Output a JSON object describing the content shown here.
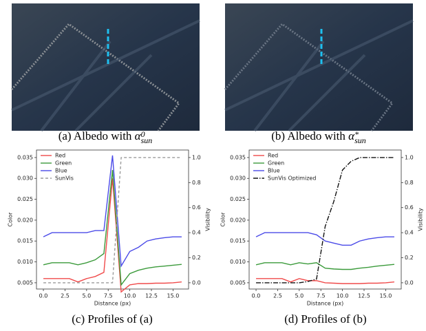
{
  "captions": [
    {
      "prefix": "(a) Albedo with ",
      "symbol": "α",
      "sup": "0",
      "sub": "sun"
    },
    {
      "prefix": "(b) Albedo with ",
      "symbol": "α",
      "sup": "*",
      "sub": "sun"
    },
    {
      "prefix": "(c) Profiles of (a)"
    },
    {
      "prefix": "(d) Profiles of (b)"
    }
  ],
  "chart_data": [
    {
      "type": "line",
      "x_label": "Distance (px)",
      "y_label": "Color",
      "y2_label": "Visibility",
      "legend": "upper-left",
      "x": [
        0,
        1,
        2,
        3,
        4,
        5,
        6,
        7,
        8,
        9,
        10,
        11,
        12,
        13,
        14,
        15,
        16
      ],
      "xlim": [
        -0.8,
        16.8
      ],
      "xticks": [
        {
          "value": 0,
          "label": "0.0"
        },
        2.5,
        {
          "value": 5,
          "label": "5.0"
        },
        7.5,
        {
          "value": 10,
          "label": "10.0"
        },
        12.5,
        {
          "value": 15,
          "label": "15.0"
        }
      ],
      "ylim": [
        0.0035,
        0.0368
      ],
      "yticks": [
        0.005,
        {
          "value": 0.01,
          "label": "0.010"
        },
        0.015,
        {
          "value": 0.02,
          "label": "0.020"
        },
        0.025,
        {
          "value": 0.03,
          "label": "0.030"
        },
        0.035
      ],
      "y2lim": [
        -0.05,
        1.06
      ],
      "y2ticks": [
        {
          "value": 0,
          "label": "0.0"
        },
        0.2,
        0.4,
        0.6,
        0.8,
        {
          "value": 1,
          "label": "1.0"
        }
      ],
      "series": [
        {
          "name": "Red",
          "color": "#f04a4a",
          "style": "solid",
          "values": [
            0.006,
            0.006,
            0.006,
            0.006,
            0.0052,
            0.006,
            0.0065,
            0.0075,
            0.03,
            0.0028,
            0.0045,
            0.0048,
            0.0048,
            0.0049,
            0.0049,
            0.005,
            0.0052
          ]
        },
        {
          "name": "Green",
          "color": "#3a9a3a",
          "style": "solid",
          "values": [
            0.0093,
            0.0098,
            0.0098,
            0.0098,
            0.0093,
            0.0098,
            0.0105,
            0.012,
            0.032,
            0.0045,
            0.0072,
            0.008,
            0.0085,
            0.0088,
            0.009,
            0.0092,
            0.0094
          ]
        },
        {
          "name": "Blue",
          "color": "#4a4ae8",
          "style": "solid",
          "values": [
            0.016,
            0.017,
            0.017,
            0.017,
            0.017,
            0.017,
            0.0175,
            0.0175,
            0.0355,
            0.009,
            0.0125,
            0.0135,
            0.015,
            0.0155,
            0.0158,
            0.016,
            0.016
          ]
        },
        {
          "name": "SunVis",
          "color": "#9a9a9a",
          "style": "dashed",
          "axis": "y2",
          "values": [
            0,
            0,
            0,
            0,
            0,
            0,
            0,
            0,
            0,
            1,
            1,
            1,
            1,
            1,
            1,
            1,
            1
          ]
        }
      ]
    },
    {
      "type": "line",
      "x_label": "Distance (px)",
      "y_label": "Color",
      "y2_label": "Visibility",
      "legend": "upper-left",
      "x": [
        0,
        1,
        2,
        3,
        4,
        5,
        6,
        7,
        8,
        9,
        10,
        11,
        12,
        13,
        14,
        15,
        16
      ],
      "xlim": [
        -0.8,
        16.8
      ],
      "xticks": [
        {
          "value": 0,
          "label": "0.0"
        },
        2.5,
        {
          "value": 5,
          "label": "5.0"
        },
        7.5,
        {
          "value": 10,
          "label": "10.0"
        },
        12.5,
        {
          "value": 15,
          "label": "15.0"
        }
      ],
      "ylim": [
        0.0035,
        0.0368
      ],
      "yticks": [
        0.005,
        {
          "value": 0.01,
          "label": "0.010"
        },
        0.015,
        {
          "value": 0.02,
          "label": "0.020"
        },
        0.025,
        {
          "value": 0.03,
          "label": "0.030"
        },
        0.035
      ],
      "y2lim": [
        -0.05,
        1.06
      ],
      "y2ticks": [
        {
          "value": 0,
          "label": "0.0"
        },
        0.2,
        0.4,
        0.6,
        0.8,
        {
          "value": 1,
          "label": "1.0"
        }
      ],
      "series": [
        {
          "name": "Red",
          "color": "#f04a4a",
          "style": "solid",
          "values": [
            0.006,
            0.006,
            0.006,
            0.006,
            0.0052,
            0.006,
            0.0055,
            0.0055,
            0.005,
            0.0049,
            0.0048,
            0.0048,
            0.0048,
            0.0049,
            0.0049,
            0.005,
            0.0052
          ]
        },
        {
          "name": "Green",
          "color": "#3a9a3a",
          "style": "solid",
          "values": [
            0.0093,
            0.0098,
            0.0098,
            0.0098,
            0.0093,
            0.0098,
            0.0095,
            0.0098,
            0.0085,
            0.0083,
            0.0082,
            0.0082,
            0.0085,
            0.0087,
            0.009,
            0.0092,
            0.0094
          ]
        },
        {
          "name": "Blue",
          "color": "#4a4ae8",
          "style": "solid",
          "values": [
            0.016,
            0.017,
            0.017,
            0.017,
            0.017,
            0.017,
            0.017,
            0.0165,
            0.015,
            0.0145,
            0.014,
            0.014,
            0.015,
            0.0155,
            0.0158,
            0.016,
            0.016
          ]
        },
        {
          "name": "SunVis Optimized",
          "color": "#111111",
          "style": "dashdot",
          "axis": "y2",
          "values": [
            0,
            0,
            0,
            0,
            0,
            0,
            0.01,
            0.03,
            0.45,
            0.65,
            0.9,
            0.97,
            1,
            1,
            1,
            1,
            1
          ]
        }
      ]
    }
  ]
}
